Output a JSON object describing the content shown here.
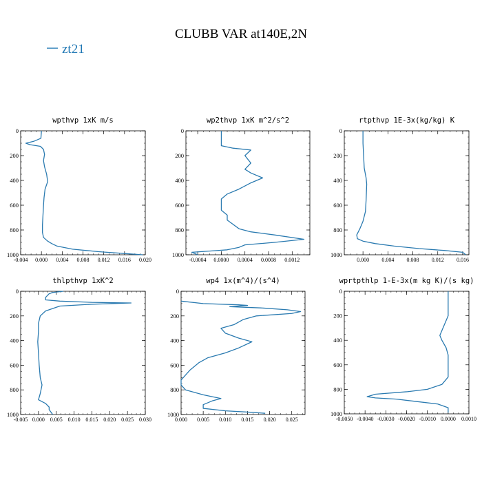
{
  "figure": {
    "title": "CLUBB VAR at140E,2N",
    "legend": {
      "label": "zt21",
      "color": "#1f77b4",
      "placement": "top-left"
    },
    "line_color": "#2a7ab0"
  },
  "chart_data": [
    {
      "type": "line",
      "title": "wpthvp  1xK m/s",
      "xlim": [
        -0.004,
        0.02
      ],
      "ylim": [
        1000,
        0
      ],
      "xticks": [
        -0.004,
        0.0,
        0.004,
        0.008,
        0.012,
        0.016,
        0.02
      ],
      "xtick_labels": [
        "-0.004",
        "0.000",
        "0.004",
        "0.008",
        "0.012",
        "0.016",
        "0.020"
      ],
      "yticks": [
        0,
        200,
        400,
        600,
        800,
        1000
      ],
      "series": [
        {
          "name": "zt21",
          "points": [
            [
              0,
              0
            ],
            [
              -0.0001,
              60
            ],
            [
              -0.0015,
              85
            ],
            [
              -0.003,
              100
            ],
            [
              -0.0022,
              112
            ],
            [
              -0.0002,
              125
            ],
            [
              0.0004,
              150
            ],
            [
              0.0006,
              190
            ],
            [
              0.0004,
              240
            ],
            [
              0.0006,
              290
            ],
            [
              0.001,
              350
            ],
            [
              0.0012,
              410
            ],
            [
              0.0007,
              470
            ],
            [
              0.0005,
              540
            ],
            [
              0.0004,
              600
            ],
            [
              0.0003,
              680
            ],
            [
              0.0002,
              760
            ],
            [
              0.0002,
              820
            ],
            [
              0.0004,
              860
            ],
            [
              0.0012,
              890
            ],
            [
              0.002,
              910
            ],
            [
              0.003,
              930
            ],
            [
              0.006,
              955
            ],
            [
              0.011,
              975
            ],
            [
              0.016,
              990
            ],
            [
              0.0195,
              1000
            ]
          ]
        }
      ]
    },
    {
      "type": "line",
      "title": "wp2thvp  1xK m^2/s^2",
      "xlim": [
        -0.0006,
        0.0015
      ],
      "ylim": [
        1000,
        0
      ],
      "xticks": [
        -0.0004,
        0.0,
        0.0004,
        0.0008,
        0.0012
      ],
      "xtick_labels": [
        "-0.0004",
        "0.0000",
        "0.0004",
        "0.0008",
        "0.0012"
      ],
      "yticks": [
        0,
        200,
        400,
        600,
        800,
        1000
      ],
      "series": [
        {
          "name": "zt21",
          "points": [
            [
              0.0,
              0
            ],
            [
              0.0,
              80
            ],
            [
              0.0,
              120
            ],
            [
              0.0002,
              140
            ],
            [
              0.0005,
              155
            ],
            [
              0.0004,
              200
            ],
            [
              0.0005,
              260
            ],
            [
              0.0004,
              310
            ],
            [
              0.0005,
              340
            ],
            [
              0.0007,
              380
            ],
            [
              0.0005,
              420
            ],
            [
              0.0003,
              470
            ],
            [
              0.0001,
              510
            ],
            [
              0.0,
              550
            ],
            [
              0.0,
              640
            ],
            [
              0.0001,
              680
            ],
            [
              0.0001,
              720
            ],
            [
              0.0003,
              790
            ],
            [
              0.0005,
              815
            ],
            [
              0.0009,
              840
            ],
            [
              0.0014,
              875
            ],
            [
              0.0009,
              900
            ],
            [
              0.0004,
              920
            ],
            [
              0.0003,
              940
            ],
            [
              0.0001,
              960
            ],
            [
              -0.0002,
              970
            ],
            [
              -0.0005,
              980
            ],
            [
              -0.0004,
              1000
            ]
          ]
        }
      ]
    },
    {
      "type": "line",
      "title": "rtpthvp  1E-3x(kg/kg) K",
      "xlim": [
        -0.003,
        0.017
      ],
      "ylim": [
        1000,
        0
      ],
      "xticks": [
        0.0,
        0.004,
        0.008,
        0.012,
        0.016
      ],
      "xtick_labels": [
        "0.000",
        "0.004",
        "0.008",
        "0.012",
        "0.016"
      ],
      "yticks": [
        0,
        200,
        400,
        600,
        800,
        1000
      ],
      "series": [
        {
          "name": "zt21",
          "points": [
            [
              0.0,
              0
            ],
            [
              0.0,
              100
            ],
            [
              0.0001,
              200
            ],
            [
              0.0002,
              300
            ],
            [
              0.0005,
              380
            ],
            [
              0.0006,
              430
            ],
            [
              0.0005,
              560
            ],
            [
              0.0004,
              650
            ],
            [
              0.0,
              730
            ],
            [
              -0.0005,
              790
            ],
            [
              -0.001,
              840
            ],
            [
              -0.0009,
              870
            ],
            [
              0.0,
              890
            ],
            [
              0.002,
              910
            ],
            [
              0.005,
              930
            ],
            [
              0.009,
              950
            ],
            [
              0.013,
              965
            ],
            [
              0.016,
              980
            ],
            [
              0.0165,
              1000
            ]
          ]
        }
      ]
    },
    {
      "type": "line",
      "title": "thlpthvp  1xK^2",
      "xlim": [
        -0.005,
        0.03
      ],
      "ylim": [
        1000,
        0
      ],
      "xticks": [
        -0.005,
        0.0,
        0.005,
        0.01,
        0.015,
        0.02,
        0.025,
        0.03
      ],
      "xtick_labels": [
        "-0.005",
        "0.000",
        "0.005",
        "0.010",
        "0.015",
        "0.020",
        "0.025",
        "0.030"
      ],
      "yticks": [
        0,
        200,
        400,
        600,
        800,
        1000
      ],
      "series": [
        {
          "name": "zt21",
          "points": [
            [
              0.007,
              0
            ],
            [
              0.004,
              10
            ],
            [
              0.003,
              20
            ],
            [
              0.002,
              50
            ],
            [
              0.002,
              70
            ],
            [
              0.006,
              80
            ],
            [
              0.015,
              90
            ],
            [
              0.026,
              95
            ],
            [
              0.015,
              105
            ],
            [
              0.006,
              120
            ],
            [
              0.002,
              160
            ],
            [
              0.0005,
              200
            ],
            [
              0.0,
              260
            ],
            [
              0.0,
              330
            ],
            [
              -0.0002,
              410
            ],
            [
              0.0,
              500
            ],
            [
              0.0002,
              600
            ],
            [
              0.0005,
              700
            ],
            [
              0.001,
              760
            ],
            [
              0.0005,
              830
            ],
            [
              0.0,
              880
            ],
            [
              0.002,
              910
            ],
            [
              0.003,
              940
            ],
            [
              0.003,
              960
            ],
            [
              0.004,
              1000
            ]
          ]
        }
      ]
    },
    {
      "type": "line",
      "title": "wp4  1x(m^4)/(s^4)",
      "xlim": [
        0.0,
        0.028
      ],
      "ylim": [
        1000,
        0
      ],
      "xticks": [
        0.0,
        0.005,
        0.01,
        0.015,
        0.02,
        0.025
      ],
      "xtick_labels": [
        "0.000",
        "0.005",
        "0.010",
        "0.015",
        "0.020",
        "0.025"
      ],
      "yticks": [
        0,
        200,
        400,
        600,
        800,
        1000
      ],
      "series": [
        {
          "name": "zt21",
          "points": [
            [
              0.0,
              80
            ],
            [
              0.005,
              100
            ],
            [
              0.013,
              110
            ],
            [
              0.015,
              115
            ],
            [
              0.011,
              125
            ],
            [
              0.018,
              135
            ],
            [
              0.024,
              150
            ],
            [
              0.027,
              165
            ],
            [
              0.025,
              180
            ],
            [
              0.017,
              200
            ],
            [
              0.014,
              230
            ],
            [
              0.012,
              270
            ],
            [
              0.009,
              300
            ],
            [
              0.01,
              340
            ],
            [
              0.013,
              380
            ],
            [
              0.016,
              410
            ],
            [
              0.013,
              460
            ],
            [
              0.01,
              500
            ],
            [
              0.006,
              540
            ],
            [
              0.004,
              580
            ],
            [
              0.002,
              640
            ],
            [
              0.001,
              680
            ],
            [
              0.0,
              720
            ],
            [
              0.0,
              760
            ],
            [
              0.001,
              800
            ],
            [
              0.005,
              840
            ],
            [
              0.009,
              870
            ],
            [
              0.007,
              890
            ],
            [
              0.005,
              920
            ],
            [
              0.005,
              950
            ],
            [
              0.01,
              970
            ],
            [
              0.015,
              980
            ],
            [
              0.019,
              990
            ]
          ]
        }
      ]
    },
    {
      "type": "line",
      "title": "wprtpthlp  1-E-3x(m kg K)/(s kg)",
      "xlim": [
        -0.005,
        0.001
      ],
      "ylim": [
        1000,
        0
      ],
      "xticks": [
        -0.005,
        -0.004,
        -0.003,
        -0.002,
        -0.001,
        0.0,
        0.001
      ],
      "xtick_labels": [
        "-0.0050",
        "-0.0040",
        "-0.0030",
        "-0.0020",
        "-0.0010",
        "0.0000",
        "0.0010"
      ],
      "yticks": [
        0,
        200,
        400,
        600,
        800,
        1000
      ],
      "series": [
        {
          "name": "zt21",
          "points": [
            [
              0.0,
              0
            ],
            [
              0.0,
              100
            ],
            [
              0.0,
              200
            ],
            [
              -0.0002,
              280
            ],
            [
              -0.0004,
              360
            ],
            [
              -0.0003,
              400
            ],
            [
              -0.0001,
              460
            ],
            [
              0.0,
              520
            ],
            [
              0.0,
              600
            ],
            [
              0.0,
              700
            ],
            [
              -0.0003,
              760
            ],
            [
              -0.001,
              800
            ],
            [
              -0.002,
              820
            ],
            [
              -0.0035,
              840
            ],
            [
              -0.0039,
              860
            ],
            [
              -0.0035,
              870
            ],
            [
              -0.0025,
              880
            ],
            [
              -0.0015,
              900
            ],
            [
              -0.0005,
              920
            ],
            [
              0.0,
              950
            ],
            [
              0.0,
              990
            ]
          ]
        }
      ]
    }
  ]
}
